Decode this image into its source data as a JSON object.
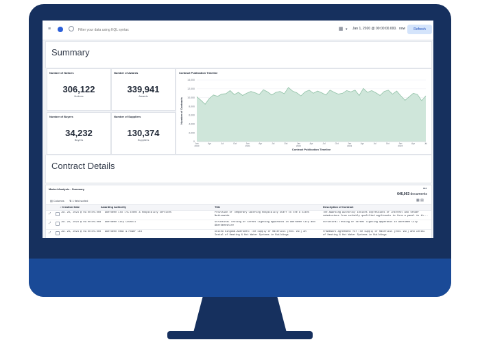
{
  "colors": {
    "bezel": "#16305e",
    "chin": "#1a4a97",
    "chart_fill": "#cfe6da",
    "chart_line": "#8fc0a5",
    "accent": "#2b5fd9"
  },
  "toolbar": {
    "menu_icon": "hamburger-icon",
    "search_placeholder": "Filter your data using KQL syntax",
    "date_start": "Jan 1, 2020 @ 00:00:00.000",
    "arrow": "→",
    "date_end": "now",
    "refresh_label": "Refresh"
  },
  "summary": {
    "title": "Summary"
  },
  "metrics": [
    {
      "title": "Number of Notices",
      "value": "306,122",
      "sub": "Notices"
    },
    {
      "title": "Number of Awards",
      "value": "339,941",
      "sub": "Awards"
    },
    {
      "title": "Number of Buyers",
      "value": "34,232",
      "sub": "Buyers"
    },
    {
      "title": "Number of Suppliers",
      "value": "130,374",
      "sub": "Suppliers"
    }
  ],
  "chart_data": {
    "type": "area",
    "title": "Contract Publication Timeline",
    "ylabel": "Number of Contracts",
    "xlabel": "Contract Publication Timeline",
    "ylim": [
      0,
      14000
    ],
    "y_ticks": [
      "0",
      "2,000",
      "4,000",
      "6,000",
      "8,000",
      "10,000",
      "12,000",
      "14,000"
    ],
    "x_ticks": [
      "Jan 2020",
      "Apr",
      "Jul",
      "Oct",
      "Jan 2021",
      "Apr",
      "Jul",
      "Oct",
      "Jan 2022",
      "Apr",
      "Jul",
      "Oct",
      "Jan 2023",
      "Apr",
      "Jul",
      "Oct",
      "Jan 2024",
      "Apr",
      "Jul"
    ],
    "values": [
      10200,
      9400,
      8500,
      9800,
      10600,
      10300,
      10800,
      10900,
      11600,
      10700,
      11200,
      10500,
      11000,
      11400,
      11100,
      10700,
      11800,
      11300,
      10600,
      11200,
      11400,
      10900,
      12300,
      11500,
      11100,
      10400,
      11300,
      11700,
      11000,
      11500,
      11100,
      10600,
      11700,
      11200,
      10800,
      11000,
      11600,
      11300,
      11700,
      10500,
      12100,
      11200,
      11600,
      11100,
      10500,
      11400,
      11700,
      10800,
      11500,
      10400,
      9400,
      10200,
      11000,
      10700,
      9300,
      10400
    ]
  },
  "details": {
    "title": "Contract Details"
  },
  "table": {
    "title": "Market Analysis - Summary",
    "menu_icon": "ellipsis-icon",
    "doc_count": "646,063",
    "doc_label": " documents",
    "columns_label": "Columns",
    "sorted_label": "1 field sorted",
    "headers": [
      "Creation Date",
      "Awarding Authority",
      "Title",
      "Description of Contract"
    ],
    "rows": [
      {
        "date": "Jul 28, 2024 @ 01:00:00.000",
        "authority": "Aberdeen Ltd T/A Event & Hospitality Services",
        "title": [
          "Provision of Temporary Catering Hospitality Staff to the 8 Sites",
          "Nationwide"
        ],
        "desc": [
          "The Awarding Authority invites Expressions of Interest and tender",
          "submissions from suitably qualified applicants to form a panel in th..."
        ]
      },
      {
        "date": "Jul 28, 2024 @ 01:00:00.000",
        "authority": "Aberdeen City Council",
        "title": [
          "Structural Testing of Street Lighting Apparatus in Aberdeen City and",
          "Aberdeenshire"
        ],
        "desc": [
          "Structural Testing of street lighting apparatus in Aberdeen City",
          ""
        ]
      },
      {
        "date": "Jul 28, 2024 @ 01:00:00.000",
        "authority": "Aberdeen Heat & Power Ltd",
        "title": [
          "United Kingdom-Aberdeen: The Supply of Materials [excl VAT] an",
          "Instal of Heating & Hot Water Systems in Buildings"
        ],
        "desc": [
          "Framework Agreement for The Supply of Materials [excl VAT] and Instal",
          "of Heating & Hot Water Systems in Buildings"
        ]
      }
    ]
  }
}
